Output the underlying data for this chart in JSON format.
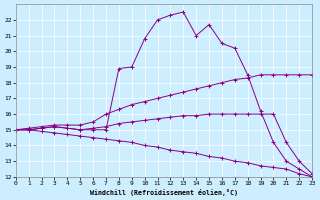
{
  "xlabel": "Windchill (Refroidissement éolien,°C)",
  "bg_color": "#cceeff",
  "line_color": "#880088",
  "ylim": [
    12,
    23
  ],
  "xlim": [
    0,
    23
  ],
  "yticks": [
    12,
    13,
    14,
    15,
    16,
    17,
    18,
    19,
    20,
    21,
    22
  ],
  "xticks": [
    0,
    1,
    2,
    3,
    4,
    5,
    6,
    7,
    8,
    9,
    10,
    11,
    12,
    13,
    14,
    15,
    16,
    17,
    18,
    19,
    20,
    21,
    22,
    23
  ],
  "lines": [
    {
      "x": [
        0,
        1,
        2,
        3,
        4,
        5,
        6,
        7,
        8,
        9,
        10,
        11,
        12,
        13,
        14,
        15,
        16,
        17,
        18,
        19,
        20,
        21,
        22,
        23
      ],
      "y": [
        15,
        15,
        15.1,
        15.2,
        15.1,
        15.0,
        15.0,
        15.0,
        18.9,
        19.0,
        20.8,
        22.0,
        22.3,
        22.5,
        21.0,
        21.7,
        20.5,
        20.2,
        18.5,
        16.2,
        14.2,
        13.0,
        12.5,
        12.0
      ]
    },
    {
      "x": [
        0,
        1,
        2,
        3,
        4,
        5,
        6,
        7,
        8,
        9,
        10,
        11,
        12,
        13,
        14,
        15,
        16,
        17,
        18,
        19,
        20,
        21,
        22,
        23
      ],
      "y": [
        15,
        15.1,
        15.2,
        15.3,
        15.3,
        15.3,
        15.5,
        16.0,
        16.3,
        16.6,
        16.8,
        17.0,
        17.2,
        17.4,
        17.6,
        17.8,
        18.0,
        18.2,
        18.3,
        18.5,
        18.5,
        18.5,
        18.5,
        18.5
      ]
    },
    {
      "x": [
        0,
        1,
        2,
        3,
        4,
        5,
        6,
        7,
        8,
        9,
        10,
        11,
        12,
        13,
        14,
        15,
        16,
        17,
        18,
        19,
        20,
        21,
        22,
        23
      ],
      "y": [
        15,
        15.0,
        15.1,
        15.2,
        15.1,
        15.0,
        15.1,
        15.2,
        15.4,
        15.5,
        15.6,
        15.7,
        15.8,
        15.9,
        15.9,
        16.0,
        16.0,
        16.0,
        16.0,
        16.0,
        16.0,
        14.2,
        13.0,
        12.2
      ]
    },
    {
      "x": [
        0,
        1,
        2,
        3,
        4,
        5,
        6,
        7,
        8,
        9,
        10,
        11,
        12,
        13,
        14,
        15,
        16,
        17,
        18,
        19,
        20,
        21,
        22,
        23
      ],
      "y": [
        15,
        15.0,
        14.9,
        14.8,
        14.7,
        14.6,
        14.5,
        14.4,
        14.3,
        14.2,
        14.0,
        13.9,
        13.7,
        13.6,
        13.5,
        13.3,
        13.2,
        13.0,
        12.9,
        12.7,
        12.6,
        12.5,
        12.2,
        12.0
      ]
    }
  ]
}
